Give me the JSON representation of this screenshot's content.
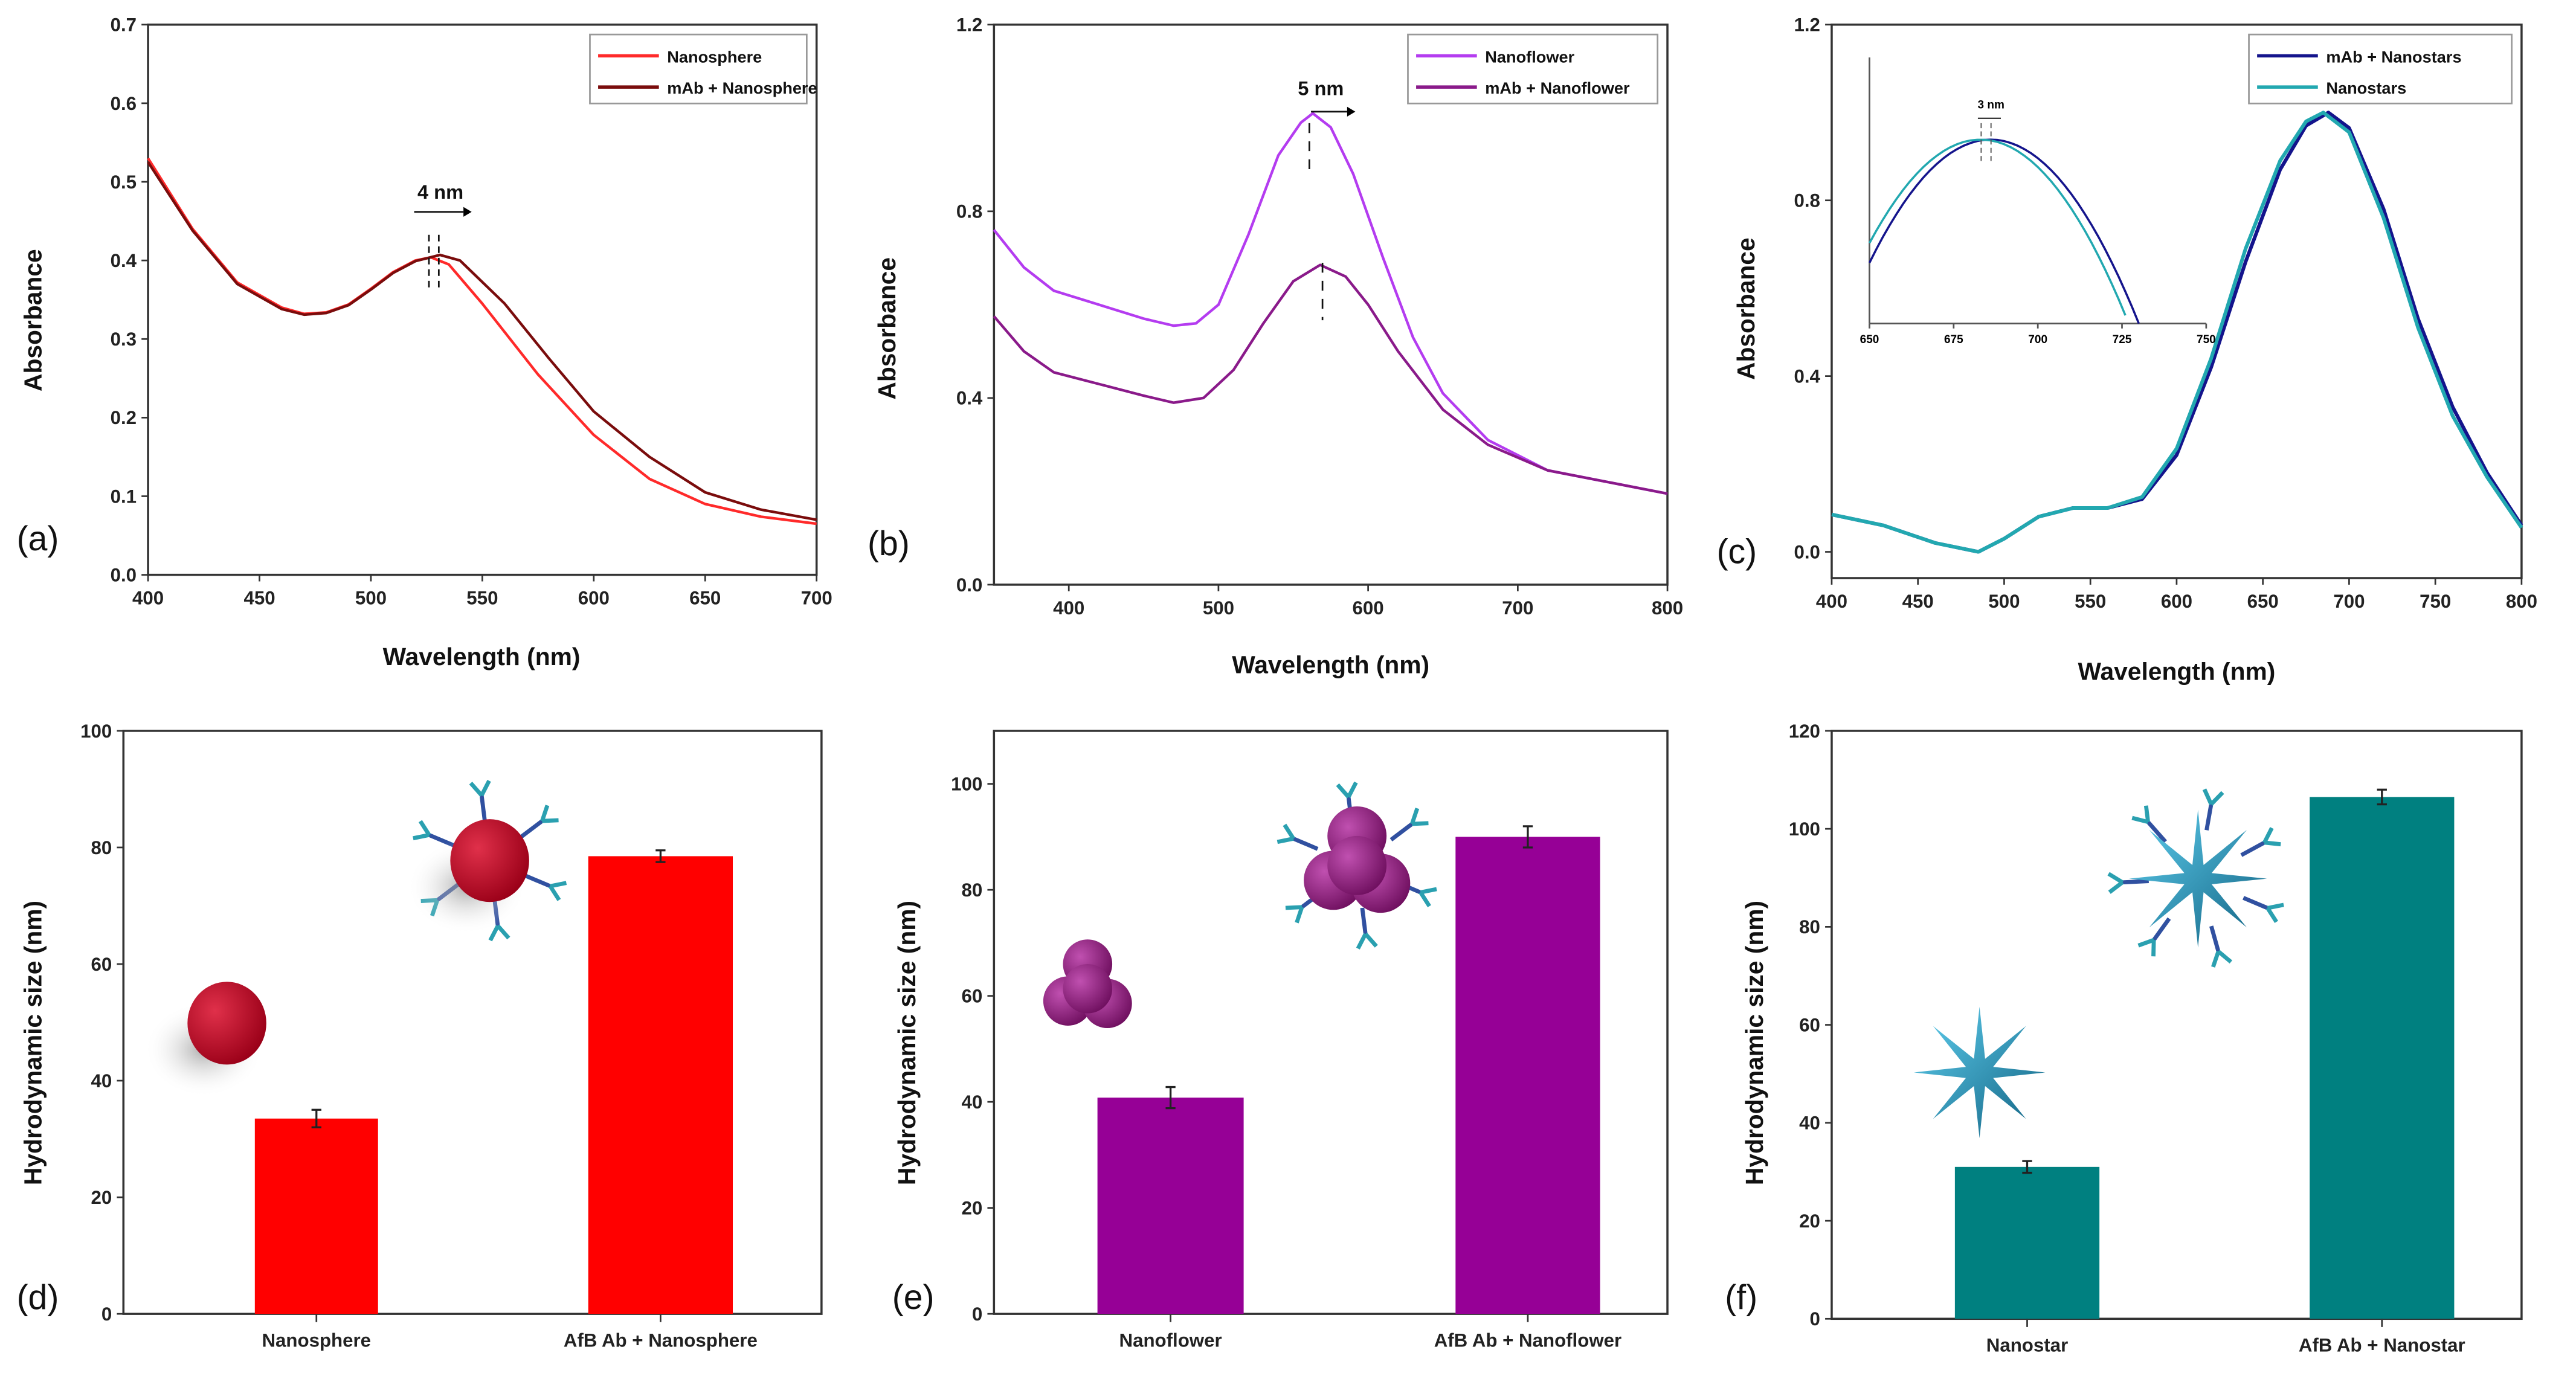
{
  "chart_data": [
    {
      "id": "a",
      "type": "line",
      "panel_label": "(a)",
      "xlabel": "Wavelength (nm)",
      "ylabel": "Absorbance",
      "xlim": [
        400,
        700
      ],
      "ylim": [
        0,
        0.7
      ],
      "xticks": [
        400,
        450,
        500,
        550,
        600,
        650,
        700
      ],
      "yticks": [
        "0.0",
        "0.1",
        "0.2",
        "0.3",
        "0.4",
        "0.5",
        "0.6",
        "0.7"
      ],
      "legend_position": "top-right",
      "annotation": "4 nm",
      "series": [
        {
          "name": "Nanosphere",
          "color": "#ff2a2a",
          "x": [
            400,
            420,
            440,
            460,
            470,
            480,
            490,
            500,
            510,
            520,
            527,
            535,
            550,
            575,
            600,
            625,
            650,
            675,
            700
          ],
          "y": [
            0.53,
            0.44,
            0.372,
            0.34,
            0.332,
            0.334,
            0.344,
            0.364,
            0.385,
            0.4,
            0.404,
            0.395,
            0.345,
            0.255,
            0.178,
            0.122,
            0.09,
            0.074,
            0.065
          ]
        },
        {
          "name": "mAb + Nanosphere",
          "color": "#7a0c0c",
          "x": [
            400,
            420,
            440,
            460,
            470,
            480,
            490,
            500,
            510,
            520,
            531,
            540,
            560,
            580,
            600,
            625,
            650,
            675,
            700
          ],
          "y": [
            0.525,
            0.438,
            0.37,
            0.338,
            0.331,
            0.333,
            0.343,
            0.363,
            0.384,
            0.399,
            0.407,
            0.4,
            0.345,
            0.275,
            0.208,
            0.15,
            0.105,
            0.083,
            0.07
          ]
        }
      ]
    },
    {
      "id": "b",
      "type": "line",
      "panel_label": "(b)",
      "xlabel": "Wavelength (nm)",
      "ylabel": "Absorbance",
      "xlim": [
        350,
        800
      ],
      "ylim": [
        0,
        1.2
      ],
      "xticks": [
        400,
        500,
        600,
        700,
        800
      ],
      "yticks": [
        "0.0",
        "0.4",
        "0.8",
        "1.2"
      ],
      "legend_position": "top-right",
      "annotation": "5 nm",
      "series": [
        {
          "name": "Nanoflower",
          "color": "#b43cf0",
          "x": [
            350,
            370,
            390,
            420,
            450,
            470,
            485,
            500,
            520,
            540,
            555,
            563,
            575,
            590,
            610,
            630,
            650,
            680,
            720,
            760,
            800
          ],
          "y": [
            0.76,
            0.68,
            0.63,
            0.6,
            0.57,
            0.555,
            0.56,
            0.6,
            0.75,
            0.92,
            0.99,
            1.01,
            0.98,
            0.88,
            0.7,
            0.53,
            0.41,
            0.31,
            0.245,
            0.22,
            0.195
          ]
        },
        {
          "name": "mAb + Nanoflower",
          "color": "#8a1a8a",
          "x": [
            350,
            370,
            390,
            420,
            450,
            470,
            490,
            510,
            530,
            550,
            568,
            585,
            600,
            620,
            650,
            680,
            720,
            760,
            800
          ],
          "y": [
            0.575,
            0.5,
            0.455,
            0.43,
            0.405,
            0.39,
            0.4,
            0.46,
            0.56,
            0.65,
            0.685,
            0.66,
            0.6,
            0.5,
            0.375,
            0.3,
            0.245,
            0.22,
            0.195
          ]
        }
      ]
    },
    {
      "id": "c",
      "type": "line",
      "panel_label": "(c)",
      "xlabel": "Wavelength (nm)",
      "ylabel": "Absorbance",
      "xlim": [
        400,
        800
      ],
      "ylim": [
        0,
        1.2
      ],
      "xticks": [
        400,
        450,
        500,
        550,
        600,
        650,
        700,
        750,
        800
      ],
      "yticks": [
        "0.0",
        "0.4",
        "0.8",
        "1.2"
      ],
      "legend_position": "top-right",
      "inset": {
        "xticks": [
          650,
          675,
          700,
          725,
          750
        ],
        "annotation": "3 nm"
      },
      "series": [
        {
          "name": "mAb + Nanostars",
          "color": "#14148c",
          "x": [
            400,
            430,
            460,
            485,
            500,
            520,
            540,
            560,
            580,
            600,
            620,
            640,
            660,
            675,
            688,
            700,
            720,
            740,
            760,
            780,
            800
          ],
          "y": [
            0.085,
            0.06,
            0.02,
            0.0,
            0.03,
            0.08,
            0.1,
            0.1,
            0.12,
            0.22,
            0.42,
            0.66,
            0.87,
            0.97,
            1.0,
            0.965,
            0.78,
            0.53,
            0.33,
            0.18,
            0.06
          ]
        },
        {
          "name": "Nanostars",
          "color": "#22a8b0",
          "x": [
            400,
            430,
            460,
            485,
            500,
            520,
            540,
            560,
            580,
            600,
            620,
            640,
            660,
            675,
            685,
            700,
            720,
            740,
            760,
            780,
            800
          ],
          "y": [
            0.085,
            0.06,
            0.02,
            0.0,
            0.03,
            0.08,
            0.1,
            0.1,
            0.125,
            0.235,
            0.44,
            0.69,
            0.89,
            0.98,
            1.0,
            0.955,
            0.76,
            0.51,
            0.31,
            0.17,
            0.055
          ]
        }
      ]
    },
    {
      "id": "d",
      "type": "bar",
      "panel_label": "(d)",
      "ylabel": "Hydrodynamic size (nm)",
      "ylim": [
        0,
        100
      ],
      "yticks": [
        0,
        20,
        40,
        60,
        80,
        100
      ],
      "color": "#ff0000",
      "categories": [
        "Nanosphere",
        "AfB Ab + Nanosphere"
      ],
      "values": [
        33.5,
        78.5
      ],
      "errors": [
        1.5,
        1.0
      ]
    },
    {
      "id": "e",
      "type": "bar",
      "panel_label": "(e)",
      "ylabel": "Hydrodynamic size (nm)",
      "ylim": [
        0,
        110
      ],
      "yticks": [
        0,
        20,
        40,
        60,
        80,
        100
      ],
      "color": "#960096",
      "categories": [
        "Nanoflower",
        "AfB Ab + Nanoflower"
      ],
      "values": [
        40.8,
        90
      ],
      "errors": [
        2.0,
        2.0
      ]
    },
    {
      "id": "f",
      "type": "bar",
      "panel_label": "(f)",
      "ylabel": "Hydrodynamic size (nm)",
      "ylim": [
        0,
        120
      ],
      "yticks": [
        0,
        20,
        40,
        60,
        80,
        100,
        120
      ],
      "color": "#008080",
      "categories": [
        "Nanostar",
        "AfB Ab + Nanostar"
      ],
      "values": [
        31,
        106.5
      ],
      "errors": [
        1.2,
        1.5
      ]
    }
  ]
}
